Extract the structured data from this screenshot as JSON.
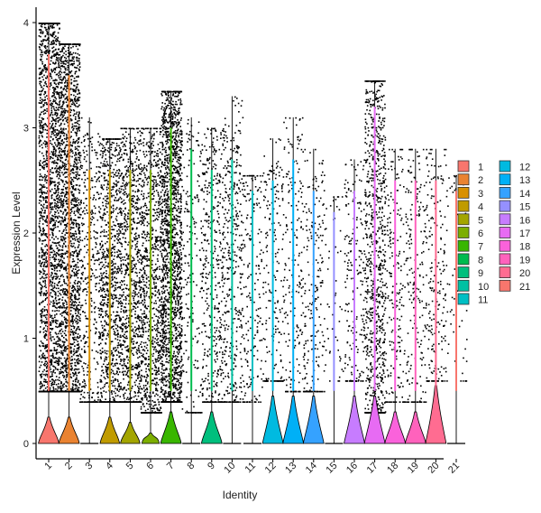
{
  "chart_data": {
    "type": "violin",
    "title": "",
    "xlabel": "Identity",
    "ylabel": "Expression Level",
    "ylim": [
      0,
      4
    ],
    "y_ticks": [
      0,
      1,
      2,
      3,
      4
    ],
    "jitter_points": true,
    "grid": false,
    "legend_position": "right",
    "legend_columns": 2,
    "categories": [
      "1",
      "2",
      "3",
      "4",
      "5",
      "6",
      "7",
      "8",
      "9",
      "10",
      "11",
      "12",
      "13",
      "14",
      "15",
      "16",
      "17",
      "18",
      "19",
      "20",
      "21"
    ],
    "colors": [
      "#F8766D",
      "#EA8331",
      "#D89000",
      "#C09B00",
      "#A3A500",
      "#7CAE00",
      "#39B600",
      "#00BB4E",
      "#00BF7D",
      "#00C1A3",
      "#00BFC4",
      "#00BAE0",
      "#00B0F6",
      "#35A2FF",
      "#9590FF",
      "#C77CFF",
      "#E76BF3",
      "#FA62DB",
      "#FF62BC",
      "#FF6C91",
      "#F8766D"
    ],
    "series": [
      {
        "name": "1",
        "max": 4.0,
        "density_peak": 0.25,
        "base_width": 0.95,
        "point_density": "very high",
        "body": [
          0.5,
          3.7
        ]
      },
      {
        "name": "2",
        "max": 3.8,
        "density_peak": 0.25,
        "base_width": 0.95,
        "point_density": "very high",
        "body": [
          0.5,
          3.5
        ]
      },
      {
        "name": "3",
        "max": 3.1,
        "density_peak": 0.0,
        "base_width": 0.0,
        "point_density": "medium",
        "body": [
          0.4,
          2.6
        ]
      },
      {
        "name": "4",
        "max": 2.9,
        "density_peak": 0.25,
        "base_width": 0.9,
        "point_density": "high",
        "body": [
          0.4,
          2.6
        ]
      },
      {
        "name": "5",
        "max": 3.0,
        "density_peak": 0.2,
        "base_width": 0.9,
        "point_density": "high",
        "body": [
          0.4,
          2.6
        ]
      },
      {
        "name": "6",
        "max": 3.0,
        "density_peak": 0.1,
        "base_width": 0.8,
        "point_density": "high",
        "body": [
          0.3,
          2.6
        ]
      },
      {
        "name": "7",
        "max": 3.35,
        "density_peak": 0.3,
        "base_width": 0.95,
        "point_density": "very high",
        "body": [
          0.4,
          3.0
        ]
      },
      {
        "name": "8",
        "max": 3.1,
        "density_peak": 0.0,
        "base_width": 0.0,
        "point_density": "low",
        "body": [
          0.3,
          2.8
        ]
      },
      {
        "name": "9",
        "max": 3.0,
        "density_peak": 0.3,
        "base_width": 0.95,
        "point_density": "medium",
        "body": [
          0.4,
          2.6
        ]
      },
      {
        "name": "10",
        "max": 3.3,
        "density_peak": 0.0,
        "base_width": 0.0,
        "point_density": "medium",
        "body": [
          0.4,
          2.7
        ]
      },
      {
        "name": "11",
        "max": 2.55,
        "density_peak": 0.0,
        "base_width": 0.0,
        "point_density": "low",
        "body": [
          0.4,
          2.4
        ]
      },
      {
        "name": "12",
        "max": 2.9,
        "density_peak": 0.45,
        "base_width": 0.95,
        "point_density": "low",
        "body": [
          0.6,
          2.5
        ]
      },
      {
        "name": "13",
        "max": 3.1,
        "density_peak": 0.45,
        "base_width": 0.95,
        "point_density": "low",
        "body": [
          0.5,
          2.7
        ]
      },
      {
        "name": "14",
        "max": 2.8,
        "density_peak": 0.45,
        "base_width": 0.95,
        "point_density": "low",
        "body": [
          0.5,
          2.4
        ]
      },
      {
        "name": "15",
        "max": 2.35,
        "density_peak": 0.0,
        "base_width": 0.0,
        "point_density": "very low",
        "body": [
          0.6,
          2.2
        ]
      },
      {
        "name": "16",
        "max": 2.7,
        "density_peak": 0.45,
        "base_width": 0.95,
        "point_density": "low",
        "body": [
          0.6,
          2.4
        ]
      },
      {
        "name": "17",
        "max": 3.45,
        "density_peak": 0.45,
        "base_width": 0.95,
        "point_density": "high",
        "body": [
          0.3,
          3.2
        ]
      },
      {
        "name": "18",
        "max": 2.8,
        "density_peak": 0.3,
        "base_width": 0.95,
        "point_density": "low",
        "body": [
          0.4,
          2.5
        ]
      },
      {
        "name": "19",
        "max": 2.8,
        "density_peak": 0.3,
        "base_width": 0.95,
        "point_density": "low",
        "body": [
          0.4,
          2.5
        ]
      },
      {
        "name": "20",
        "max": 2.8,
        "density_peak": 0.55,
        "base_width": 0.95,
        "point_density": "low",
        "body": [
          0.6,
          2.5
        ]
      },
      {
        "name": "21",
        "max": 2.55,
        "density_peak": 0.0,
        "base_width": 0.0,
        "point_density": "very low",
        "body": [
          0.6,
          2.4
        ]
      }
    ]
  }
}
